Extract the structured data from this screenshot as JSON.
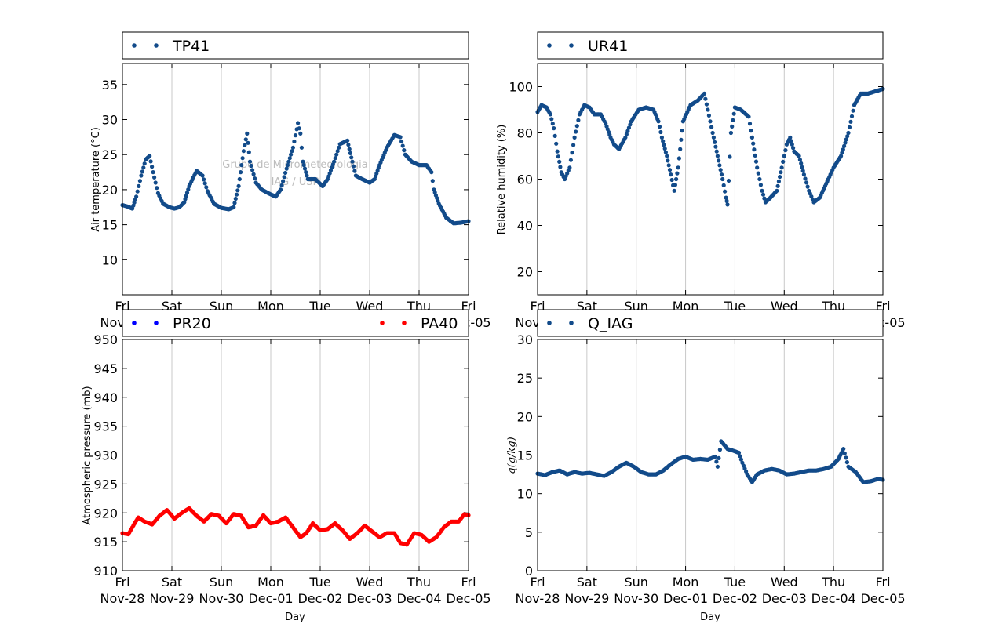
{
  "colors": {
    "series": "#124b8a",
    "pa40": "#ff0000",
    "pr20": "#0000ff",
    "grid": "#c8c8c8"
  },
  "shared_x": {
    "xlabel": "Day",
    "days": [
      "Fri",
      "Sat",
      "Sun",
      "Mon",
      "Tue",
      "Wed",
      "Thu",
      "Fri"
    ],
    "dates": [
      "Nov-28",
      "Nov-29",
      "Nov-30",
      "Dec-01",
      "Dec-02",
      "Dec-03",
      "Dec-04",
      "Dec-05"
    ],
    "xlim": [
      0,
      7
    ]
  },
  "watermark": {
    "line1": "Grupo de Micrometeorologia",
    "line2": "IAG / USP"
  },
  "chart_data": [
    {
      "type": "scatter",
      "ylabel": "Air temperature (°C)",
      "ylim": [
        5,
        38
      ],
      "yticks": [
        10,
        15,
        20,
        25,
        30,
        35
      ],
      "grid": "vertical",
      "legend": [
        {
          "name": "TP41",
          "color": "#124b8a"
        }
      ],
      "series": [
        {
          "name": "TP41",
          "color": "#124b8a",
          "points": [
            [
              0,
              17.8
            ],
            [
              0.1,
              17.6
            ],
            [
              0.2,
              17.3
            ],
            [
              0.28,
              19
            ],
            [
              0.38,
              22
            ],
            [
              0.47,
              24.3
            ],
            [
              0.55,
              24.8
            ],
            [
              0.62,
              22.5
            ],
            [
              0.72,
              19.5
            ],
            [
              0.82,
              18
            ],
            [
              0.95,
              17.5
            ],
            [
              1.05,
              17.3
            ],
            [
              1.15,
              17.5
            ],
            [
              1.25,
              18.2
            ],
            [
              1.35,
              20.5
            ],
            [
              1.5,
              22.7
            ],
            [
              1.62,
              22
            ],
            [
              1.72,
              19.8
            ],
            [
              1.85,
              18
            ],
            [
              2.0,
              17.4
            ],
            [
              2.15,
              17.2
            ],
            [
              2.25,
              17.5
            ],
            [
              2.35,
              20.5
            ],
            [
              2.45,
              25.5
            ],
            [
              2.52,
              28
            ],
            [
              2.58,
              24
            ],
            [
              2.7,
              21
            ],
            [
              2.82,
              20
            ],
            [
              2.95,
              19.5
            ],
            [
              3.1,
              19
            ],
            [
              3.2,
              20
            ],
            [
              3.32,
              23
            ],
            [
              3.45,
              26
            ],
            [
              3.55,
              29.5
            ],
            [
              3.6,
              28
            ],
            [
              3.65,
              24
            ],
            [
              3.75,
              21.5
            ],
            [
              3.9,
              21.5
            ],
            [
              4.05,
              20.5
            ],
            [
              4.15,
              21.5
            ],
            [
              4.28,
              24
            ],
            [
              4.4,
              26.5
            ],
            [
              4.55,
              27
            ],
            [
              4.65,
              24
            ],
            [
              4.72,
              22
            ],
            [
              4.85,
              21.5
            ],
            [
              5.0,
              21
            ],
            [
              5.1,
              21.5
            ],
            [
              5.2,
              23.5
            ],
            [
              5.35,
              26
            ],
            [
              5.5,
              27.8
            ],
            [
              5.62,
              27.5
            ],
            [
              5.72,
              25
            ],
            [
              5.85,
              24
            ],
            [
              6.0,
              23.5
            ],
            [
              6.15,
              23.5
            ],
            [
              6.25,
              22.5
            ],
            [
              6.3,
              20
            ],
            [
              6.4,
              18
            ],
            [
              6.55,
              16
            ],
            [
              6.7,
              15.2
            ],
            [
              6.85,
              15.3
            ],
            [
              7.0,
              15.5
            ]
          ]
        }
      ]
    },
    {
      "type": "scatter",
      "ylabel": "Relative humidity (%)",
      "ylim": [
        10,
        110
      ],
      "yticks": [
        20,
        40,
        60,
        80,
        100
      ],
      "grid": "vertical",
      "legend": [
        {
          "name": "UR41",
          "color": "#124b8a"
        }
      ],
      "series": [
        {
          "name": "UR41",
          "color": "#124b8a",
          "points": [
            [
              0,
              89
            ],
            [
              0.08,
              92
            ],
            [
              0.18,
              91
            ],
            [
              0.26,
              88
            ],
            [
              0.33,
              82
            ],
            [
              0.4,
              72
            ],
            [
              0.48,
              63
            ],
            [
              0.55,
              60
            ],
            [
              0.65,
              65
            ],
            [
              0.75,
              78
            ],
            [
              0.85,
              88
            ],
            [
              0.95,
              92
            ],
            [
              1.05,
              91
            ],
            [
              1.15,
              88
            ],
            [
              1.28,
              88
            ],
            [
              1.38,
              84
            ],
            [
              1.48,
              78
            ],
            [
              1.55,
              75
            ],
            [
              1.65,
              73
            ],
            [
              1.78,
              78
            ],
            [
              1.9,
              85
            ],
            [
              2.05,
              90
            ],
            [
              2.2,
              91
            ],
            [
              2.35,
              90
            ],
            [
              2.45,
              85
            ],
            [
              2.52,
              78
            ],
            [
              2.62,
              70
            ],
            [
              2.7,
              62
            ],
            [
              2.77,
              55
            ],
            [
              2.85,
              65
            ],
            [
              2.95,
              85
            ],
            [
              3.1,
              92
            ],
            [
              3.25,
              94
            ],
            [
              3.38,
              97
            ],
            [
              3.45,
              90
            ],
            [
              3.55,
              80
            ],
            [
              3.65,
              70
            ],
            [
              3.75,
              60
            ],
            [
              3.82,
              52
            ],
            [
              3.85,
              49
            ],
            [
              3.92,
              80
            ],
            [
              4.0,
              91
            ],
            [
              4.12,
              90
            ],
            [
              4.28,
              87
            ],
            [
              4.35,
              78
            ],
            [
              4.45,
              65
            ],
            [
              4.55,
              55
            ],
            [
              4.62,
              50
            ],
            [
              4.72,
              52
            ],
            [
              4.85,
              55
            ],
            [
              4.95,
              65
            ],
            [
              5.05,
              75
            ],
            [
              5.12,
              78
            ],
            [
              5.2,
              72
            ],
            [
              5.3,
              70
            ],
            [
              5.4,
              62
            ],
            [
              5.5,
              55
            ],
            [
              5.6,
              50
            ],
            [
              5.72,
              52
            ],
            [
              5.85,
              58
            ],
            [
              6.0,
              65
            ],
            [
              6.15,
              70
            ],
            [
              6.3,
              80
            ],
            [
              6.42,
              92
            ],
            [
              6.55,
              97
            ],
            [
              6.7,
              97
            ],
            [
              6.85,
              98
            ],
            [
              7.0,
              99
            ]
          ]
        }
      ]
    },
    {
      "type": "scatter",
      "ylabel": "Atmospheric pressure (mb)",
      "ylim": [
        910,
        950
      ],
      "yticks": [
        910,
        915,
        920,
        925,
        930,
        935,
        940,
        945,
        950
      ],
      "grid": "vertical",
      "legend": [
        {
          "name": "PR20",
          "color": "#0000ff"
        },
        {
          "name": "PA40",
          "color": "#ff0000"
        }
      ],
      "series": [
        {
          "name": "PA40",
          "color": "#ff0000",
          "points": [
            [
              0,
              916.5
            ],
            [
              0.12,
              916.3
            ],
            [
              0.22,
              917.8
            ],
            [
              0.32,
              919.2
            ],
            [
              0.45,
              918.5
            ],
            [
              0.6,
              918
            ],
            [
              0.75,
              919.5
            ],
            [
              0.9,
              920.5
            ],
            [
              1.05,
              919
            ],
            [
              1.2,
              920
            ],
            [
              1.35,
              920.8
            ],
            [
              1.5,
              919.5
            ],
            [
              1.65,
              918.5
            ],
            [
              1.8,
              919.8
            ],
            [
              1.95,
              919.5
            ],
            [
              2.1,
              918.2
            ],
            [
              2.25,
              919.8
            ],
            [
              2.4,
              919.5
            ],
            [
              2.55,
              917.5
            ],
            [
              2.7,
              917.8
            ],
            [
              2.85,
              919.6
            ],
            [
              3.0,
              918.2
            ],
            [
              3.15,
              918.5
            ],
            [
              3.3,
              919.2
            ],
            [
              3.45,
              917.5
            ],
            [
              3.6,
              915.8
            ],
            [
              3.72,
              916.5
            ],
            [
              3.85,
              918.2
            ],
            [
              4.0,
              917
            ],
            [
              4.15,
              917.2
            ],
            [
              4.3,
              918.2
            ],
            [
              4.45,
              917
            ],
            [
              4.6,
              915.5
            ],
            [
              4.75,
              916.5
            ],
            [
              4.9,
              917.8
            ],
            [
              5.05,
              916.8
            ],
            [
              5.2,
              915.8
            ],
            [
              5.35,
              916.5
            ],
            [
              5.5,
              916.5
            ],
            [
              5.62,
              914.8
            ],
            [
              5.75,
              914.5
            ],
            [
              5.9,
              916.5
            ],
            [
              6.05,
              916.2
            ],
            [
              6.2,
              915
            ],
            [
              6.35,
              915.8
            ],
            [
              6.5,
              917.5
            ],
            [
              6.65,
              918.5
            ],
            [
              6.8,
              918.5
            ],
            [
              6.92,
              919.8
            ],
            [
              7.0,
              919.6
            ]
          ]
        }
      ]
    },
    {
      "type": "scatter",
      "ylabel": "q(g/kg)",
      "ylim": [
        0,
        30
      ],
      "yticks": [
        0,
        5,
        10,
        15,
        20,
        25,
        30
      ],
      "grid": "vertical",
      "legend": [
        {
          "name": "Q_IAG",
          "color": "#124b8a"
        }
      ],
      "series": [
        {
          "name": "Q_IAG",
          "color": "#124b8a",
          "points": [
            [
              0,
              12.6
            ],
            [
              0.15,
              12.4
            ],
            [
              0.3,
              12.8
            ],
            [
              0.45,
              13
            ],
            [
              0.6,
              12.5
            ],
            [
              0.75,
              12.8
            ],
            [
              0.9,
              12.6
            ],
            [
              1.05,
              12.7
            ],
            [
              1.2,
              12.5
            ],
            [
              1.35,
              12.3
            ],
            [
              1.5,
              12.8
            ],
            [
              1.65,
              13.5
            ],
            [
              1.8,
              14
            ],
            [
              1.95,
              13.5
            ],
            [
              2.1,
              12.8
            ],
            [
              2.25,
              12.5
            ],
            [
              2.4,
              12.5
            ],
            [
              2.55,
              13
            ],
            [
              2.7,
              13.8
            ],
            [
              2.85,
              14.5
            ],
            [
              3.0,
              14.8
            ],
            [
              3.15,
              14.4
            ],
            [
              3.3,
              14.5
            ],
            [
              3.45,
              14.4
            ],
            [
              3.6,
              14.8
            ],
            [
              3.65,
              13.5
            ],
            [
              3.72,
              16.8
            ],
            [
              3.85,
              15.8
            ],
            [
              4.0,
              15.5
            ],
            [
              4.08,
              15.3
            ],
            [
              4.15,
              14
            ],
            [
              4.25,
              12.5
            ],
            [
              4.35,
              11.5
            ],
            [
              4.45,
              12.5
            ],
            [
              4.6,
              13
            ],
            [
              4.75,
              13.2
            ],
            [
              4.9,
              13
            ],
            [
              5.05,
              12.5
            ],
            [
              5.2,
              12.6
            ],
            [
              5.35,
              12.8
            ],
            [
              5.5,
              13
            ],
            [
              5.65,
              13
            ],
            [
              5.8,
              13.2
            ],
            [
              5.95,
              13.5
            ],
            [
              6.1,
              14.5
            ],
            [
              6.2,
              15.8
            ],
            [
              6.3,
              13.5
            ],
            [
              6.45,
              12.8
            ],
            [
              6.6,
              11.5
            ],
            [
              6.75,
              11.6
            ],
            [
              6.9,
              11.9
            ],
            [
              7.0,
              11.8
            ]
          ]
        }
      ]
    }
  ]
}
